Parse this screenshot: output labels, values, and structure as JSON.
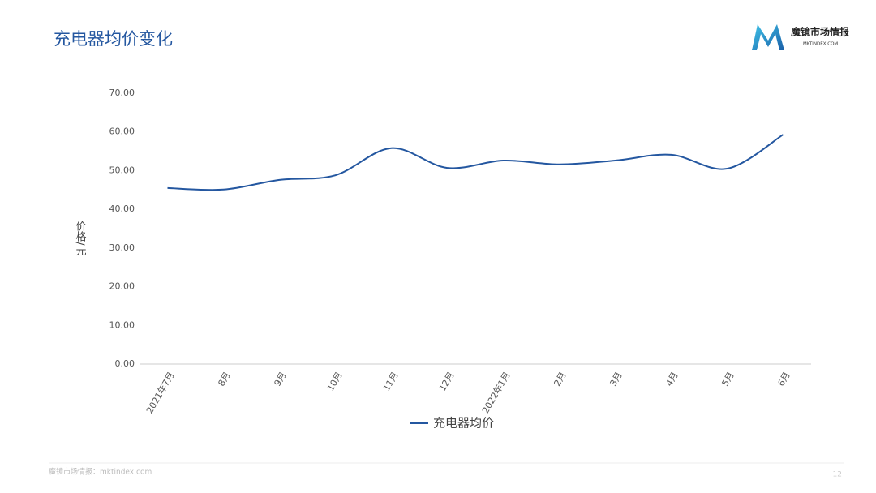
{
  "logo": {
    "name": "魔镜市场情报",
    "url": "MKTINDEX.COM"
  },
  "footer": {
    "source": "魔镜市场情报：mktindex.com",
    "page": "12"
  },
  "chart_data": {
    "type": "line",
    "title": "充电器均价变化",
    "ylabel": "价格/元",
    "categories": [
      "2021年7月",
      "8月",
      "9月",
      "10月",
      "11月",
      "12月",
      "2022年1月",
      "2月",
      "3月",
      "4月",
      "5月",
      "6月"
    ],
    "series": [
      {
        "name": "充电器均价",
        "color": "#2457a0",
        "values": [
          45.5,
          45.1,
          47.6,
          48.8,
          55.8,
          50.7,
          52.6,
          51.6,
          52.6,
          54.1,
          50.5,
          59.3
        ]
      }
    ],
    "ylim": [
      0,
      70
    ],
    "yticks": [
      {
        "value": 0,
        "label": "0.00"
      },
      {
        "value": 10,
        "label": "10.00"
      },
      {
        "value": 20,
        "label": "20.00"
      },
      {
        "value": 30,
        "label": "30.00"
      },
      {
        "value": 40,
        "label": "40.00"
      },
      {
        "value": 50,
        "label": "50.00"
      },
      {
        "value": 60,
        "label": "60.00"
      },
      {
        "value": 70,
        "label": "70.00"
      }
    ],
    "grid": false,
    "legend": "bottom",
    "smooth": true
  }
}
